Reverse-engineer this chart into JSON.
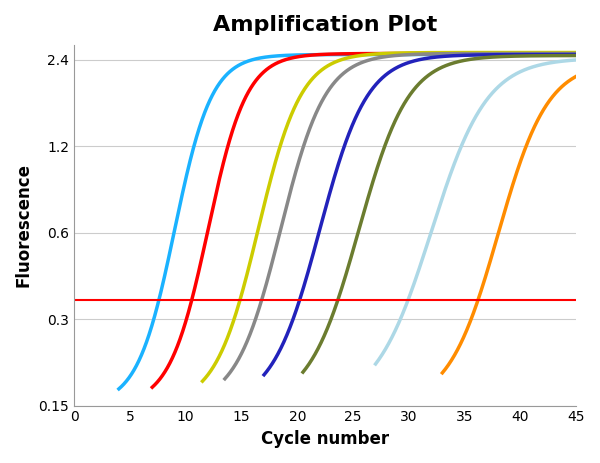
{
  "title": "Amplification Plot",
  "xlabel": "Cycle number",
  "ylabel": "Fluorescence",
  "xlim": [
    0,
    45
  ],
  "ylim_log": [
    0.15,
    2.7
  ],
  "yticks": [
    0.15,
    0.3,
    0.6,
    1.2,
    2.4
  ],
  "ytick_labels": [
    "0.15",
    "0.3",
    "0.6",
    "1.2",
    "2.4"
  ],
  "xticks": [
    0,
    5,
    10,
    15,
    20,
    25,
    30,
    35,
    40,
    45
  ],
  "threshold": 0.35,
  "curves": [
    {
      "color": "#1AB2FF",
      "x0": 9.0,
      "steepness": 0.6,
      "ymax": 2.5,
      "ymin": 0.15
    },
    {
      "color": "#FF0000",
      "x0": 12.0,
      "steepness": 0.58,
      "ymax": 2.52,
      "ymin": 0.15
    },
    {
      "color": "#CCCC00",
      "x0": 16.5,
      "steepness": 0.52,
      "ymax": 2.54,
      "ymin": 0.15
    },
    {
      "color": "#888888",
      "x0": 18.5,
      "steepness": 0.5,
      "ymax": 2.52,
      "ymin": 0.15
    },
    {
      "color": "#2222BB",
      "x0": 22.0,
      "steepness": 0.47,
      "ymax": 2.5,
      "ymin": 0.15
    },
    {
      "color": "#6B7C2F",
      "x0": 25.5,
      "steepness": 0.45,
      "ymax": 2.48,
      "ymin": 0.15
    },
    {
      "color": "#ADD8E6",
      "x0": 32.0,
      "steepness": 0.4,
      "ymax": 2.43,
      "ymin": 0.15
    },
    {
      "color": "#FF8C00",
      "x0": 38.0,
      "steepness": 0.45,
      "ymax": 2.35,
      "ymin": 0.15
    }
  ],
  "background_color": "#FFFFFF",
  "grid_color": "#CCCCCC",
  "title_fontsize": 16,
  "label_fontsize": 12
}
